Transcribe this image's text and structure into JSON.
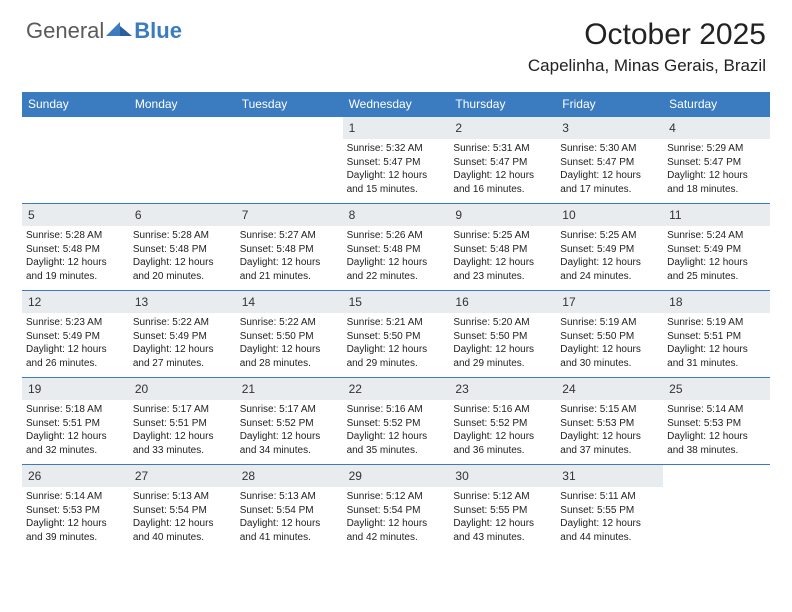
{
  "brand": {
    "part1": "General",
    "part2": "Blue"
  },
  "title": "October 2025",
  "location": "Capelinha, Minas Gerais, Brazil",
  "colors": {
    "header_bg": "#3b7bbf",
    "daynum_bg": "#e9ecef",
    "rule": "#3b7bbf",
    "text": "#222222",
    "brand_gray": "#5a5a5a",
    "brand_blue": "#3b7bbf",
    "page_bg": "#ffffff"
  },
  "typography": {
    "title_fontsize": 30,
    "location_fontsize": 17,
    "weekday_fontsize": 12,
    "daynum_fontsize": 12,
    "body_fontsize": 10
  },
  "weekdays": [
    "Sunday",
    "Monday",
    "Tuesday",
    "Wednesday",
    "Thursday",
    "Friday",
    "Saturday"
  ],
  "weeks": [
    [
      {
        "n": "",
        "sr": "",
        "ss": "",
        "dl1": "",
        "dl2": ""
      },
      {
        "n": "",
        "sr": "",
        "ss": "",
        "dl1": "",
        "dl2": ""
      },
      {
        "n": "",
        "sr": "",
        "ss": "",
        "dl1": "",
        "dl2": ""
      },
      {
        "n": "1",
        "sr": "Sunrise: 5:32 AM",
        "ss": "Sunset: 5:47 PM",
        "dl1": "Daylight: 12 hours",
        "dl2": "and 15 minutes."
      },
      {
        "n": "2",
        "sr": "Sunrise: 5:31 AM",
        "ss": "Sunset: 5:47 PM",
        "dl1": "Daylight: 12 hours",
        "dl2": "and 16 minutes."
      },
      {
        "n": "3",
        "sr": "Sunrise: 5:30 AM",
        "ss": "Sunset: 5:47 PM",
        "dl1": "Daylight: 12 hours",
        "dl2": "and 17 minutes."
      },
      {
        "n": "4",
        "sr": "Sunrise: 5:29 AM",
        "ss": "Sunset: 5:47 PM",
        "dl1": "Daylight: 12 hours",
        "dl2": "and 18 minutes."
      }
    ],
    [
      {
        "n": "5",
        "sr": "Sunrise: 5:28 AM",
        "ss": "Sunset: 5:48 PM",
        "dl1": "Daylight: 12 hours",
        "dl2": "and 19 minutes."
      },
      {
        "n": "6",
        "sr": "Sunrise: 5:28 AM",
        "ss": "Sunset: 5:48 PM",
        "dl1": "Daylight: 12 hours",
        "dl2": "and 20 minutes."
      },
      {
        "n": "7",
        "sr": "Sunrise: 5:27 AM",
        "ss": "Sunset: 5:48 PM",
        "dl1": "Daylight: 12 hours",
        "dl2": "and 21 minutes."
      },
      {
        "n": "8",
        "sr": "Sunrise: 5:26 AM",
        "ss": "Sunset: 5:48 PM",
        "dl1": "Daylight: 12 hours",
        "dl2": "and 22 minutes."
      },
      {
        "n": "9",
        "sr": "Sunrise: 5:25 AM",
        "ss": "Sunset: 5:48 PM",
        "dl1": "Daylight: 12 hours",
        "dl2": "and 23 minutes."
      },
      {
        "n": "10",
        "sr": "Sunrise: 5:25 AM",
        "ss": "Sunset: 5:49 PM",
        "dl1": "Daylight: 12 hours",
        "dl2": "and 24 minutes."
      },
      {
        "n": "11",
        "sr": "Sunrise: 5:24 AM",
        "ss": "Sunset: 5:49 PM",
        "dl1": "Daylight: 12 hours",
        "dl2": "and 25 minutes."
      }
    ],
    [
      {
        "n": "12",
        "sr": "Sunrise: 5:23 AM",
        "ss": "Sunset: 5:49 PM",
        "dl1": "Daylight: 12 hours",
        "dl2": "and 26 minutes."
      },
      {
        "n": "13",
        "sr": "Sunrise: 5:22 AM",
        "ss": "Sunset: 5:49 PM",
        "dl1": "Daylight: 12 hours",
        "dl2": "and 27 minutes."
      },
      {
        "n": "14",
        "sr": "Sunrise: 5:22 AM",
        "ss": "Sunset: 5:50 PM",
        "dl1": "Daylight: 12 hours",
        "dl2": "and 28 minutes."
      },
      {
        "n": "15",
        "sr": "Sunrise: 5:21 AM",
        "ss": "Sunset: 5:50 PM",
        "dl1": "Daylight: 12 hours",
        "dl2": "and 29 minutes."
      },
      {
        "n": "16",
        "sr": "Sunrise: 5:20 AM",
        "ss": "Sunset: 5:50 PM",
        "dl1": "Daylight: 12 hours",
        "dl2": "and 29 minutes."
      },
      {
        "n": "17",
        "sr": "Sunrise: 5:19 AM",
        "ss": "Sunset: 5:50 PM",
        "dl1": "Daylight: 12 hours",
        "dl2": "and 30 minutes."
      },
      {
        "n": "18",
        "sr": "Sunrise: 5:19 AM",
        "ss": "Sunset: 5:51 PM",
        "dl1": "Daylight: 12 hours",
        "dl2": "and 31 minutes."
      }
    ],
    [
      {
        "n": "19",
        "sr": "Sunrise: 5:18 AM",
        "ss": "Sunset: 5:51 PM",
        "dl1": "Daylight: 12 hours",
        "dl2": "and 32 minutes."
      },
      {
        "n": "20",
        "sr": "Sunrise: 5:17 AM",
        "ss": "Sunset: 5:51 PM",
        "dl1": "Daylight: 12 hours",
        "dl2": "and 33 minutes."
      },
      {
        "n": "21",
        "sr": "Sunrise: 5:17 AM",
        "ss": "Sunset: 5:52 PM",
        "dl1": "Daylight: 12 hours",
        "dl2": "and 34 minutes."
      },
      {
        "n": "22",
        "sr": "Sunrise: 5:16 AM",
        "ss": "Sunset: 5:52 PM",
        "dl1": "Daylight: 12 hours",
        "dl2": "and 35 minutes."
      },
      {
        "n": "23",
        "sr": "Sunrise: 5:16 AM",
        "ss": "Sunset: 5:52 PM",
        "dl1": "Daylight: 12 hours",
        "dl2": "and 36 minutes."
      },
      {
        "n": "24",
        "sr": "Sunrise: 5:15 AM",
        "ss": "Sunset: 5:53 PM",
        "dl1": "Daylight: 12 hours",
        "dl2": "and 37 minutes."
      },
      {
        "n": "25",
        "sr": "Sunrise: 5:14 AM",
        "ss": "Sunset: 5:53 PM",
        "dl1": "Daylight: 12 hours",
        "dl2": "and 38 minutes."
      }
    ],
    [
      {
        "n": "26",
        "sr": "Sunrise: 5:14 AM",
        "ss": "Sunset: 5:53 PM",
        "dl1": "Daylight: 12 hours",
        "dl2": "and 39 minutes."
      },
      {
        "n": "27",
        "sr": "Sunrise: 5:13 AM",
        "ss": "Sunset: 5:54 PM",
        "dl1": "Daylight: 12 hours",
        "dl2": "and 40 minutes."
      },
      {
        "n": "28",
        "sr": "Sunrise: 5:13 AM",
        "ss": "Sunset: 5:54 PM",
        "dl1": "Daylight: 12 hours",
        "dl2": "and 41 minutes."
      },
      {
        "n": "29",
        "sr": "Sunrise: 5:12 AM",
        "ss": "Sunset: 5:54 PM",
        "dl1": "Daylight: 12 hours",
        "dl2": "and 42 minutes."
      },
      {
        "n": "30",
        "sr": "Sunrise: 5:12 AM",
        "ss": "Sunset: 5:55 PM",
        "dl1": "Daylight: 12 hours",
        "dl2": "and 43 minutes."
      },
      {
        "n": "31",
        "sr": "Sunrise: 5:11 AM",
        "ss": "Sunset: 5:55 PM",
        "dl1": "Daylight: 12 hours",
        "dl2": "and 44 minutes."
      },
      {
        "n": "",
        "sr": "",
        "ss": "",
        "dl1": "",
        "dl2": ""
      }
    ]
  ]
}
